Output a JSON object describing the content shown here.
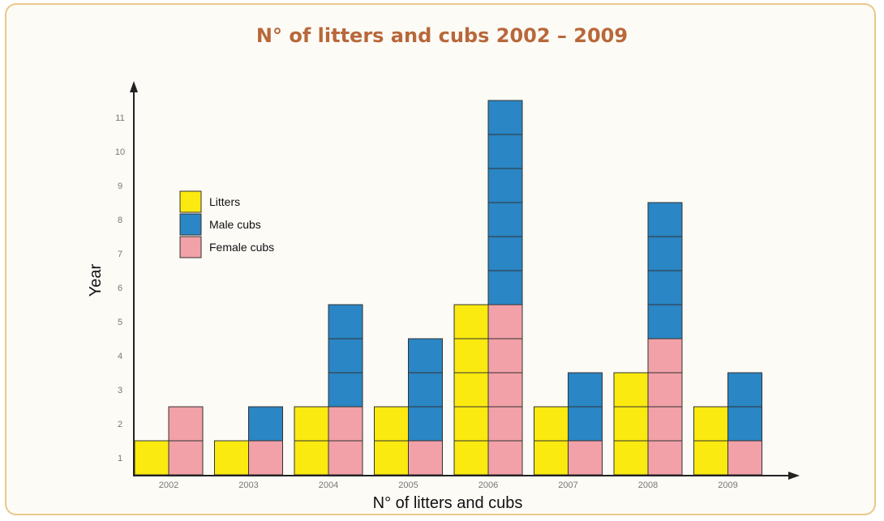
{
  "chart_data": {
    "type": "bar",
    "stacked": true,
    "title": "N° of litters and cubs 2002 – 2009",
    "xlabel": "N° of litters and cubs",
    "ylabel": "Year",
    "categories": [
      "2002",
      "2003",
      "2004",
      "2005",
      "2006",
      "2007",
      "2008",
      "2009"
    ],
    "yticks": [
      1,
      2,
      3,
      4,
      5,
      6,
      7,
      8,
      9,
      10,
      11
    ],
    "ylim": [
      0,
      11.5
    ],
    "grid": false,
    "legend_position": "top-left",
    "series": [
      {
        "name": "Litters",
        "color": "#fbea0f",
        "stack": "litters",
        "values": [
          1,
          1,
          2,
          2,
          5,
          2,
          3,
          2
        ]
      },
      {
        "name": "Female cubs",
        "color": "#f1a1a7",
        "stack": "cubs",
        "values": [
          2,
          1,
          2,
          1,
          5,
          1,
          4,
          1
        ]
      },
      {
        "name": "Male cubs",
        "color": "#2a86c4",
        "stack": "cubs",
        "values": [
          0,
          1,
          3,
          3,
          6,
          2,
          4,
          2
        ]
      }
    ],
    "legend": [
      {
        "label": "Litters",
        "color": "#fbea0f"
      },
      {
        "label": "Male cubs",
        "color": "#2a86c4"
      },
      {
        "label": "Female cubs",
        "color": "#f1a1a7"
      }
    ]
  }
}
